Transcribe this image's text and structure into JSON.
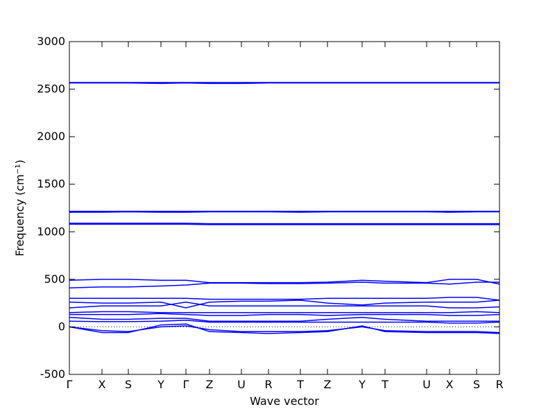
{
  "chart_data": {
    "type": "line",
    "xlabel": "Wave vector",
    "ylabel": "Frequency (cm⁻¹)",
    "x": [
      0,
      47,
      85,
      132,
      168,
      202,
      248,
      287,
      333,
      372,
      422,
      455,
      515,
      548,
      587,
      620
    ],
    "xlim": [
      0,
      620
    ],
    "xticks": [
      {
        "value": 0,
        "label": "Γ"
      },
      {
        "value": 47,
        "label": "X"
      },
      {
        "value": 85,
        "label": "S"
      },
      {
        "value": 132,
        "label": "Y"
      },
      {
        "value": 168,
        "label": "Γ"
      },
      {
        "value": 202,
        "label": "Z"
      },
      {
        "value": 248,
        "label": "U"
      },
      {
        "value": 287,
        "label": "R"
      },
      {
        "value": 333,
        "label": "T"
      },
      {
        "value": 372,
        "label": "Z"
      },
      {
        "value": 422,
        "label": "Y"
      },
      {
        "value": 455,
        "label": "T"
      },
      {
        "value": 515,
        "label": "U"
      },
      {
        "value": 548,
        "label": "X"
      },
      {
        "value": 587,
        "label": "S"
      },
      {
        "value": 620,
        "label": "R"
      }
    ],
    "ylim": [
      -500,
      3000
    ],
    "yticks": [
      -500,
      0,
      500,
      1000,
      1500,
      2000,
      2500,
      3000
    ],
    "grid": false,
    "series": [
      {
        "color": "#0000ff",
        "values": [
          2570,
          2570,
          2570,
          2570,
          2570,
          2570,
          2570,
          2570,
          2570,
          2570,
          2570,
          2570,
          2570,
          2570,
          2570,
          2570
        ]
      },
      {
        "color": "#0000ff",
        "values": [
          2565,
          2565,
          2565,
          2560,
          2565,
          2560,
          2560,
          2565,
          2565,
          2565,
          2565,
          2565,
          2565,
          2565,
          2565,
          2565
        ]
      },
      {
        "color": "#0000ff",
        "values": [
          1215,
          1215,
          1215,
          1215,
          1215,
          1215,
          1215,
          1215,
          1215,
          1215,
          1215,
          1215,
          1215,
          1215,
          1215,
          1215
        ]
      },
      {
        "color": "#0000ff",
        "values": [
          1205,
          1205,
          1210,
          1205,
          1205,
          1210,
          1210,
          1210,
          1205,
          1210,
          1210,
          1210,
          1210,
          1205,
          1210,
          1210
        ]
      },
      {
        "color": "#0000ff",
        "values": [
          1090,
          1090,
          1090,
          1090,
          1090,
          1085,
          1085,
          1085,
          1085,
          1085,
          1085,
          1085,
          1085,
          1085,
          1085,
          1085
        ]
      },
      {
        "color": "#0000ff",
        "values": [
          1080,
          1080,
          1080,
          1080,
          1080,
          1075,
          1075,
          1075,
          1075,
          1075,
          1075,
          1075,
          1075,
          1075,
          1075,
          1075
        ]
      },
      {
        "color": "#0000ff",
        "values": [
          490,
          500,
          500,
          490,
          490,
          465,
          465,
          465,
          465,
          470,
          490,
          480,
          465,
          500,
          500,
          450
        ]
      },
      {
        "color": "#0000ff",
        "values": [
          410,
          420,
          420,
          430,
          440,
          460,
          460,
          455,
          455,
          460,
          470,
          460,
          460,
          450,
          470,
          470
        ]
      },
      {
        "color": "#0000ff",
        "values": [
          300,
          300,
          300,
          300,
          300,
          290,
          290,
          290,
          290,
          300,
          300,
          300,
          300,
          310,
          310,
          280
        ]
      },
      {
        "color": "#0000ff",
        "values": [
          260,
          250,
          250,
          260,
          200,
          260,
          270,
          270,
          280,
          250,
          230,
          250,
          260,
          260,
          260,
          280
        ]
      },
      {
        "color": "#0000ff",
        "values": [
          200,
          220,
          220,
          220,
          260,
          220,
          220,
          220,
          220,
          220,
          220,
          220,
          220,
          200,
          200,
          210
        ]
      },
      {
        "color": "#0000ff",
        "values": [
          150,
          160,
          160,
          150,
          150,
          150,
          150,
          150,
          150,
          150,
          150,
          150,
          150,
          150,
          160,
          150
        ]
      },
      {
        "color": "#0000ff",
        "values": [
          130,
          130,
          130,
          140,
          130,
          120,
          120,
          130,
          130,
          120,
          130,
          130,
          130,
          120,
          120,
          130
        ]
      },
      {
        "color": "#0000ff",
        "values": [
          100,
          80,
          80,
          90,
          90,
          60,
          60,
          60,
          60,
          80,
          100,
          80,
          60,
          60,
          60,
          60
        ]
      },
      {
        "color": "#0000ff",
        "values": [
          60,
          55,
          55,
          60,
          70,
          50,
          50,
          50,
          50,
          50,
          50,
          50,
          50,
          40,
          40,
          50
        ]
      },
      {
        "color": "#0000ff",
        "values": [
          0,
          -60,
          -60,
          20,
          30,
          -50,
          -60,
          -70,
          -60,
          -50,
          10,
          -50,
          -60,
          -60,
          -60,
          -70
        ]
      },
      {
        "color": "#0000ff",
        "values": [
          0,
          -40,
          -50,
          0,
          10,
          -30,
          -50,
          -50,
          -50,
          -40,
          0,
          -40,
          -50,
          -50,
          -50,
          -60
        ]
      }
    ]
  }
}
